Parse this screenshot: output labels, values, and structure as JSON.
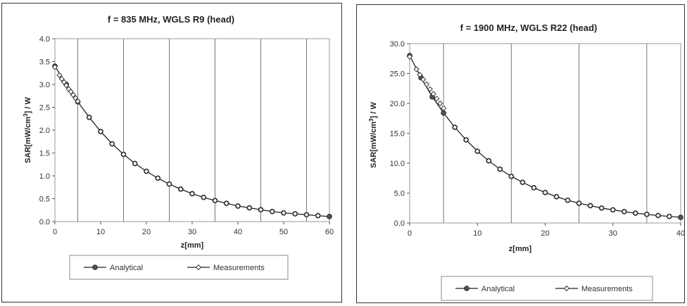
{
  "chart_data": [
    {
      "type": "line",
      "title": "f = 835 MHz, WGLS R9 (head)",
      "xlabel": "z[mm]",
      "ylabel_main": "SAR[mW/cm",
      "ylabel_sup": "3",
      "ylabel_tail": "] / W",
      "xlim": [
        0,
        60
      ],
      "ylim": [
        0,
        4
      ],
      "xticks": [
        0,
        10,
        20,
        30,
        40,
        50,
        60
      ],
      "xtick_labels": [
        "0",
        "10",
        "20",
        "30",
        "40",
        "50",
        "60"
      ],
      "yticks": [
        0,
        0.5,
        1,
        1.5,
        2,
        2.5,
        3,
        3.5,
        4
      ],
      "ytick_labels": [
        "0.0",
        "0.5",
        "1.0",
        "1.5",
        "2.0",
        "2.5",
        "3.0",
        "3.5",
        "4.0"
      ],
      "grid": "vertical",
      "legend_position": "bottom",
      "series": [
        {
          "name": "Analytical",
          "marker": "filled-circle",
          "x": [
            0,
            2.5,
            5,
            7.5,
            10,
            12.5,
            15,
            17.5,
            20,
            22.5,
            25,
            27.5,
            30,
            32.5,
            35,
            37.5,
            40,
            42.5,
            45,
            47.5,
            50,
            52.5,
            55,
            57.5,
            60
          ],
          "y": [
            3.4,
            3.0,
            2.62,
            2.28,
            1.97,
            1.7,
            1.47,
            1.27,
            1.1,
            0.95,
            0.82,
            0.71,
            0.61,
            0.53,
            0.46,
            0.4,
            0.34,
            0.3,
            0.26,
            0.22,
            0.19,
            0.17,
            0.15,
            0.13,
            0.11
          ]
        },
        {
          "name": "Measurements",
          "marker": "open-diamond",
          "x": [
            0,
            1,
            1.5,
            2,
            2.5,
            3,
            3.5,
            4,
            4.5,
            5,
            7.5,
            10,
            12.5,
            15,
            17.5,
            20,
            22.5,
            25,
            27.5,
            30,
            32.5,
            35,
            37.5,
            40,
            42.5,
            45,
            47.5,
            50,
            52.5,
            55,
            57.5
          ],
          "y": [
            3.38,
            3.2,
            3.12,
            3.05,
            2.98,
            2.9,
            2.84,
            2.77,
            2.7,
            2.63,
            2.28,
            1.97,
            1.7,
            1.47,
            1.27,
            1.1,
            0.95,
            0.82,
            0.71,
            0.61,
            0.53,
            0.46,
            0.4,
            0.34,
            0.3,
            0.26,
            0.22,
            0.19,
            0.17,
            0.15,
            0.13
          ]
        }
      ]
    },
    {
      "type": "line",
      "title": "f = 1900 MHz, WGLS R22 (head)",
      "xlabel": "z[mm]",
      "ylabel_main": "SAR[mW/cm",
      "ylabel_sup": "3",
      "ylabel_tail": "] / W",
      "xlim": [
        0,
        40
      ],
      "ylim": [
        0,
        30
      ],
      "xticks": [
        0,
        10,
        20,
        30,
        40
      ],
      "xtick_labels": [
        "0",
        "10",
        "20",
        "30",
        "40"
      ],
      "yticks": [
        0,
        5,
        10,
        15,
        20,
        25,
        30
      ],
      "ytick_labels": [
        "0.0",
        "5.0",
        "10.0",
        "15.0",
        "20.0",
        "25.0",
        "30.0"
      ],
      "grid": "vertical",
      "legend_position": "bottom",
      "series": [
        {
          "name": "Analytical",
          "marker": "filled-circle",
          "x": [
            0,
            1.67,
            3.33,
            5,
            6.67,
            8.33,
            10,
            11.67,
            13.33,
            15,
            16.67,
            18.33,
            20,
            21.67,
            23.33,
            25,
            26.67,
            28.33,
            30,
            31.67,
            33.33,
            35,
            36.67,
            38.33,
            40
          ],
          "y": [
            28.0,
            24.3,
            21.1,
            18.4,
            16.0,
            13.9,
            12.0,
            10.4,
            9.0,
            7.8,
            6.8,
            5.9,
            5.1,
            4.4,
            3.8,
            3.3,
            2.9,
            2.5,
            2.2,
            1.9,
            1.65,
            1.45,
            1.25,
            1.1,
            0.95
          ]
        },
        {
          "name": "Measurements",
          "marker": "open-diamond",
          "x": [
            0,
            1,
            1.5,
            2,
            2.5,
            3,
            3.5,
            4,
            4.5,
            5,
            6.67,
            8.33,
            10,
            11.67,
            13.33,
            15,
            16.67,
            18.33,
            20,
            21.67,
            23.33,
            25,
            26.67,
            28.33,
            30,
            31.67,
            33.33,
            35,
            36.67,
            38.33
          ],
          "y": [
            27.8,
            25.7,
            24.8,
            24.0,
            23.2,
            22.4,
            21.6,
            20.8,
            20.0,
            19.2,
            16.0,
            13.9,
            12.0,
            10.4,
            9.0,
            7.8,
            6.8,
            5.9,
            5.1,
            4.4,
            3.8,
            3.3,
            2.9,
            2.5,
            2.2,
            1.9,
            1.65,
            1.45,
            1.25,
            1.1
          ]
        }
      ]
    }
  ]
}
